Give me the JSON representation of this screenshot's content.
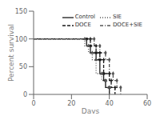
{
  "chart_data": {
    "type": "step",
    "xlabel": "Days",
    "ylabel": "Percent survival",
    "xlim": [
      0,
      60
    ],
    "ylim": [
      0,
      150
    ],
    "xticks": [
      0,
      20,
      40,
      60
    ],
    "yticks": [
      0,
      50,
      100,
      150
    ],
    "grid": false,
    "legend": "upper right",
    "series": [
      {
        "name": "Control",
        "color": "#1a1a1a",
        "line_style": "solid",
        "marker": "square",
        "x": [
          0,
          28,
          30,
          33,
          35,
          37,
          38,
          40
        ],
        "values": [
          100,
          87.5,
          75,
          62.5,
          37.5,
          25,
          12.5,
          0
        ]
      },
      {
        "name": "SIE",
        "color": "#555555",
        "line_style": "dotted",
        "marker": "triangle",
        "x": [
          0,
          27,
          29,
          31,
          33,
          36,
          38,
          40
        ],
        "values": [
          100,
          87.5,
          75,
          62.5,
          37.5,
          25,
          12.5,
          0
        ]
      },
      {
        "name": "DOCE",
        "color": "#1a1a1a",
        "line_style": "dashed",
        "marker": "plus",
        "x": [
          0,
          30,
          33,
          35,
          37,
          40,
          41,
          43
        ],
        "values": [
          100,
          87.5,
          75,
          62.5,
          37.5,
          25,
          12.5,
          0
        ]
      },
      {
        "name": "DOCE+SIE",
        "color": "#555555",
        "line_style": "dashdot",
        "marker": "diamond",
        "x": [
          0,
          32,
          35,
          38,
          40,
          42,
          44,
          46
        ],
        "values": [
          100,
          87.5,
          75,
          62.5,
          37.5,
          25,
          12.5,
          0
        ]
      }
    ]
  }
}
